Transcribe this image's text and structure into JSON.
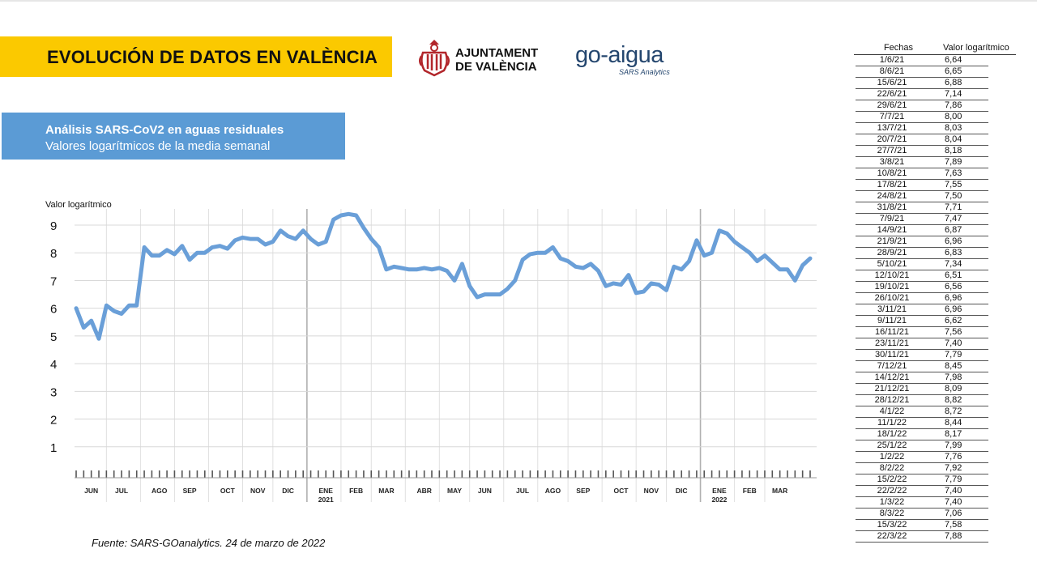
{
  "header": {
    "title": "EVOLUCIÓN DE DATOS EN VALÈNCIA",
    "ajuntament_line1": "AJUNTAMENT",
    "ajuntament_line2": "DE VALÈNCIA",
    "goaigua_logo": "go-aigua",
    "goaigua_sub": "SARS Analytics"
  },
  "analysis": {
    "line1": "Análisis SARS-CoV2 en aguas residuales",
    "line2": "Valores logarítmicos de la media semanal"
  },
  "source": "Fuente: SARS-GOanalytics. 24 de marzo de 2022",
  "colors": {
    "accent_yellow": "#fbc900",
    "box_blue": "#5b9bd5",
    "line_blue": "#6a9fd8",
    "logo_navy": "#24466e",
    "crest_red": "#b2262b"
  },
  "chart_data": {
    "type": "line",
    "ylabel": "Valor logarítmico",
    "ylim": [
      0,
      9
    ],
    "yticks": [
      1,
      2,
      3,
      4,
      5,
      6,
      7,
      8,
      9
    ],
    "grid": true,
    "month_labels": [
      "JUN",
      "JUL",
      "AGO",
      "SEP",
      "OCT",
      "NOV",
      "DIC",
      "ENE",
      "FEB",
      "MAR",
      "ABR",
      "MAY",
      "JUN",
      "JUL",
      "AGO",
      "SEP",
      "OCT",
      "NOV",
      "DIC",
      "ENE",
      "FEB",
      "MAR"
    ],
    "month_week_index": [
      2,
      6,
      11,
      15,
      20,
      24,
      28,
      33,
      37,
      41,
      46,
      50,
      54,
      59,
      63,
      67,
      72,
      76,
      80,
      85,
      89,
      93
    ],
    "year_labels": [
      {
        "label": "2021",
        "month_index": 7
      },
      {
        "label": "2022",
        "month_index": 19
      }
    ],
    "series": [
      {
        "values": [
          6.0,
          5.3,
          5.55,
          4.9,
          6.1,
          5.9,
          5.8,
          6.1,
          6.1,
          8.2,
          7.9,
          7.9,
          8.1,
          7.95,
          8.25,
          7.75,
          8.0,
          8.0,
          8.2,
          8.25,
          8.15,
          8.45,
          8.55,
          8.5,
          8.5,
          8.3,
          8.4,
          8.8,
          8.6,
          8.5,
          8.8,
          8.5,
          8.3,
          8.4,
          9.2,
          9.35,
          9.4,
          9.35,
          8.9,
          8.5,
          8.2,
          7.4,
          7.5,
          7.45,
          7.4,
          7.4,
          7.45,
          7.4,
          7.45,
          7.35,
          7.0,
          7.6,
          6.8,
          6.4,
          6.5,
          6.5,
          6.5,
          6.7,
          7.0,
          7.75,
          7.95,
          8.0,
          8.0,
          8.2,
          7.8,
          7.7,
          7.5,
          7.45,
          7.6,
          7.35,
          6.8,
          6.9,
          6.85,
          7.2,
          6.55,
          6.6,
          6.9,
          6.85,
          6.65,
          7.5,
          7.4,
          7.7,
          8.45,
          7.9,
          8.0,
          8.8,
          8.7,
          8.4,
          8.2,
          8.0,
          7.7,
          7.9,
          7.65,
          7.4,
          7.4,
          7.0,
          7.55,
          7.8
        ]
      }
    ]
  },
  "table": {
    "headers": [
      "Fechas",
      "Valor logarítmico"
    ],
    "rows": [
      [
        "1/6/21",
        "6,64"
      ],
      [
        "8/6/21",
        "6,65"
      ],
      [
        "15/6/21",
        "6,88"
      ],
      [
        "22/6/21",
        "7,14"
      ],
      [
        "29/6/21",
        "7,86"
      ],
      [
        "7/7/21",
        "8,00"
      ],
      [
        "13/7/21",
        "8,03"
      ],
      [
        "20/7/21",
        "8,04"
      ],
      [
        "27/7/21",
        "8,18"
      ],
      [
        "3/8/21",
        "7,89"
      ],
      [
        "10/8/21",
        "7,63"
      ],
      [
        "17/8/21",
        "7,55"
      ],
      [
        "24/8/21",
        "7,50"
      ],
      [
        "31/8/21",
        "7,71"
      ],
      [
        "7/9/21",
        "7,47"
      ],
      [
        "14/9/21",
        "6,87"
      ],
      [
        "21/9/21",
        "6,96"
      ],
      [
        "28/9/21",
        "6,83"
      ],
      [
        "5/10/21",
        "7,34"
      ],
      [
        "12/10/21",
        "6,51"
      ],
      [
        "19/10/21",
        "6,56"
      ],
      [
        "26/10/21",
        "6,96"
      ],
      [
        "3/11/21",
        "6,96"
      ],
      [
        "9/11/21",
        "6,62"
      ],
      [
        "16/11/21",
        "7,56"
      ],
      [
        "23/11/21",
        "7,40"
      ],
      [
        "30/11/21",
        "7,79"
      ],
      [
        "7/12/21",
        "8,45"
      ],
      [
        "14/12/21",
        "7,98"
      ],
      [
        "21/12/21",
        "8,09"
      ],
      [
        "28/12/21",
        "8,82"
      ],
      [
        "4/1/22",
        "8,72"
      ],
      [
        "11/1/22",
        "8,44"
      ],
      [
        "18/1/22",
        "8,17"
      ],
      [
        "25/1/22",
        "7,99"
      ],
      [
        "1/2/22",
        "7,76"
      ],
      [
        "8/2/22",
        "7,92"
      ],
      [
        "15/2/22",
        "7,79"
      ],
      [
        "22/2/22",
        "7,40"
      ],
      [
        "1/3/22",
        "7,40"
      ],
      [
        "8/3/22",
        "7,06"
      ],
      [
        "15/3/22",
        "7,58"
      ],
      [
        "22/3/22",
        "7,88"
      ]
    ]
  }
}
